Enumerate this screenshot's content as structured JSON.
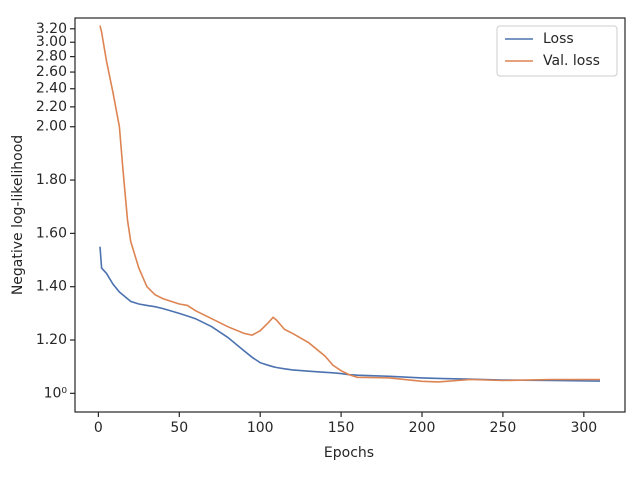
{
  "chart_data": {
    "type": "line",
    "xlabel": "Epochs",
    "ylabel": "Negative log-likelihood",
    "x": [
      1,
      2,
      5,
      9,
      13,
      15,
      18,
      20,
      25,
      30,
      35,
      40,
      50,
      55,
      60,
      70,
      80,
      90,
      95,
      100,
      105,
      108,
      110,
      115,
      120,
      130,
      140,
      145,
      150,
      155,
      160,
      180,
      200,
      210,
      230,
      250,
      280,
      310
    ],
    "series": [
      {
        "name": "Loss",
        "color": "#4c72b0",
        "values": [
          1.55,
          1.47,
          1.45,
          1.41,
          1.38,
          1.37,
          1.355,
          1.345,
          1.335,
          1.33,
          1.325,
          1.318,
          1.3,
          1.29,
          1.28,
          1.25,
          1.21,
          1.16,
          1.135,
          1.115,
          1.105,
          1.1,
          1.097,
          1.092,
          1.088,
          1.083,
          1.079,
          1.077,
          1.074,
          1.07,
          1.068,
          1.064,
          1.058,
          1.056,
          1.053,
          1.05,
          1.048,
          1.046
        ]
      },
      {
        "name": "Val. loss",
        "color": "#dd8452",
        "values": [
          3.25,
          3.15,
          2.74,
          2.36,
          2.0,
          1.85,
          1.65,
          1.57,
          1.47,
          1.4,
          1.37,
          1.355,
          1.335,
          1.33,
          1.31,
          1.28,
          1.25,
          1.225,
          1.218,
          1.235,
          1.265,
          1.285,
          1.275,
          1.24,
          1.225,
          1.19,
          1.14,
          1.105,
          1.085,
          1.07,
          1.06,
          1.058,
          1.045,
          1.043,
          1.052,
          1.048,
          1.052,
          1.052
        ]
      }
    ],
    "xlim": [
      -14.45,
      325.45
    ],
    "xticks": [
      0,
      50,
      100,
      150,
      200,
      250,
      300
    ],
    "ylim": [
      0.93,
      3.37
    ],
    "yscale": "symlog",
    "linthresh": 2,
    "yticks": [
      {
        "value": 1,
        "label": "10⁰"
      },
      {
        "value": 1.2,
        "label": "1.20"
      },
      {
        "value": 1.4,
        "label": "1.40"
      },
      {
        "value": 1.6,
        "label": "1.60"
      },
      {
        "value": 1.8,
        "label": "1.80"
      },
      {
        "value": 2,
        "label": "2.00"
      },
      {
        "value": 2.2,
        "label": "2.20"
      },
      {
        "value": 2.4,
        "label": "2.40"
      },
      {
        "value": 2.6,
        "label": "2.60"
      },
      {
        "value": 2.8,
        "label": "2.80"
      },
      {
        "value": 3,
        "label": "3.00"
      },
      {
        "value": 3.2,
        "label": "3.20"
      }
    ],
    "legend": "upper right"
  }
}
